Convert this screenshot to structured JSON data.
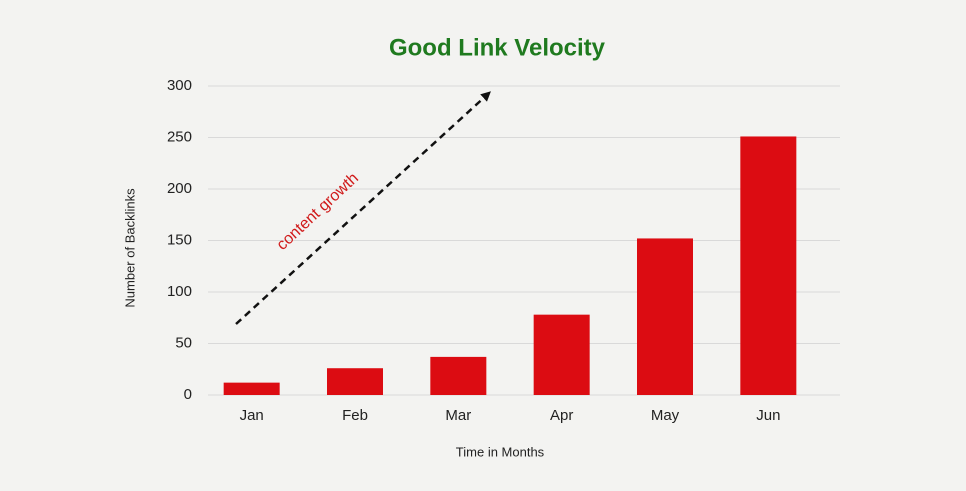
{
  "chart_data": {
    "type": "bar",
    "title": "Good Link Velocity",
    "x_label": "Time in Months",
    "y_label": "Number of Backlinks",
    "annotation": "content growth",
    "categories": [
      "Jan",
      "Feb",
      "Mar",
      "Apr",
      "May",
      "Jun"
    ],
    "values": [
      12,
      26,
      37,
      78,
      152,
      251
    ],
    "color": "#dc0c12",
    "ylim": [
      0,
      300
    ],
    "yticks": [
      0,
      50,
      100,
      150,
      200,
      250,
      300
    ],
    "grid": true
  }
}
